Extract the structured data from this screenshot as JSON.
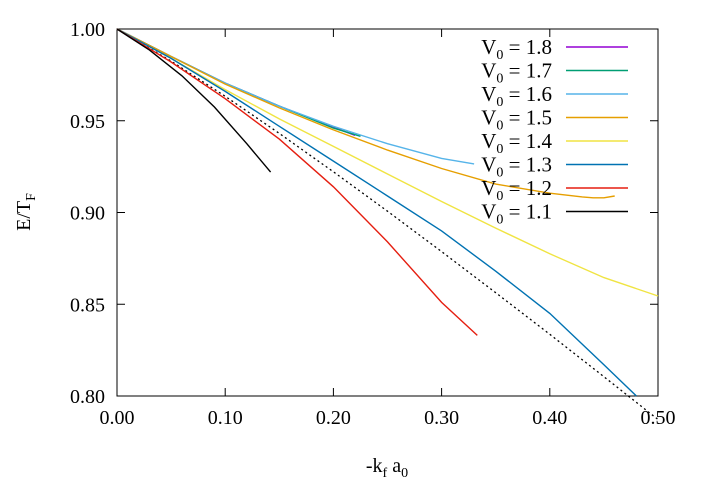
{
  "chart_data": {
    "type": "line",
    "xlabel": "-k",
    "xlabel_sub1": "f",
    "xlabel_mid": " a",
    "xlabel_sub2": "0",
    "ylabel": "E/T",
    "ylabel_sub": "F",
    "xlim": [
      0.0,
      0.5
    ],
    "ylim": [
      0.8,
      1.0
    ],
    "xticks": [
      "0.00",
      "0.10",
      "0.20",
      "0.30",
      "0.40",
      "0.50"
    ],
    "yticks": [
      "0.80",
      "0.85",
      "0.90",
      "0.95",
      "1.00"
    ],
    "legend_position": "top-right",
    "reference_curve": {
      "style": "dotted",
      "color": "#000000",
      "x": [
        0.0,
        0.05,
        0.1,
        0.15,
        0.2,
        0.25,
        0.3,
        0.35,
        0.4,
        0.45,
        0.5
      ],
      "y": [
        1.0,
        0.9825,
        0.9633,
        0.9431,
        0.9222,
        0.9007,
        0.8787,
        0.8563,
        0.8336,
        0.8105,
        0.7872
      ]
    },
    "series": [
      {
        "name": "V",
        "sub": "0",
        "value": " = 1.8",
        "color": "#9400d3",
        "x": [
          0.0,
          0.05,
          0.1,
          0.15,
          0.2,
          0.22
        ],
        "y": [
          1.0,
          0.985,
          0.9705,
          0.958,
          0.9465,
          0.942
        ]
      },
      {
        "name": "V",
        "sub": "0",
        "value": " = 1.7",
        "color": "#009e73",
        "x": [
          0.0,
          0.05,
          0.1,
          0.15,
          0.2,
          0.225
        ],
        "y": [
          1.0,
          0.985,
          0.9705,
          0.958,
          0.946,
          0.9415
        ]
      },
      {
        "name": "V",
        "sub": "0",
        "value": " = 1.6",
        "color": "#56b4e9",
        "x": [
          0.0,
          0.05,
          0.1,
          0.15,
          0.2,
          0.25,
          0.3,
          0.33
        ],
        "y": [
          1.0,
          0.985,
          0.9705,
          0.958,
          0.947,
          0.9375,
          0.9295,
          0.9265
        ]
      },
      {
        "name": "V",
        "sub": "0",
        "value": " = 1.5",
        "color": "#e69f00",
        "x": [
          0.0,
          0.05,
          0.1,
          0.15,
          0.2,
          0.25,
          0.3,
          0.35,
          0.4,
          0.43,
          0.44,
          0.45,
          0.46
        ],
        "y": [
          1.0,
          0.985,
          0.97,
          0.957,
          0.945,
          0.934,
          0.924,
          0.9155,
          0.9105,
          0.9085,
          0.908,
          0.908,
          0.909
        ]
      },
      {
        "name": "V",
        "sub": "0",
        "value": " = 1.4",
        "color": "#f0e442",
        "x": [
          0.0,
          0.05,
          0.1,
          0.15,
          0.2,
          0.25,
          0.3,
          0.35,
          0.4,
          0.45,
          0.5
        ],
        "y": [
          1.0,
          0.984,
          0.967,
          0.951,
          0.936,
          0.921,
          0.906,
          0.8915,
          0.8775,
          0.8645,
          0.8545
        ]
      },
      {
        "name": "V",
        "sub": "0",
        "value": " = 1.3",
        "color": "#0072b2",
        "x": [
          0.0,
          0.05,
          0.1,
          0.15,
          0.2,
          0.25,
          0.3,
          0.35,
          0.4,
          0.45,
          0.48
        ],
        "y": [
          1.0,
          0.984,
          0.966,
          0.947,
          0.928,
          0.909,
          0.89,
          0.868,
          0.845,
          0.817,
          0.8
        ]
      },
      {
        "name": "V",
        "sub": "0",
        "value": " = 1.2",
        "color": "#e51e10",
        "x": [
          0.0,
          0.05,
          0.1,
          0.15,
          0.2,
          0.25,
          0.3,
          0.333
        ],
        "y": [
          1.0,
          0.982,
          0.962,
          0.94,
          0.914,
          0.884,
          0.851,
          0.833
        ]
      },
      {
        "name": "V",
        "sub": "0",
        "value": " = 1.1",
        "color": "#000000",
        "x": [
          0.0,
          0.03,
          0.06,
          0.09,
          0.12,
          0.142
        ],
        "y": [
          1.0,
          0.9885,
          0.9745,
          0.9575,
          0.9375,
          0.922
        ]
      }
    ]
  }
}
